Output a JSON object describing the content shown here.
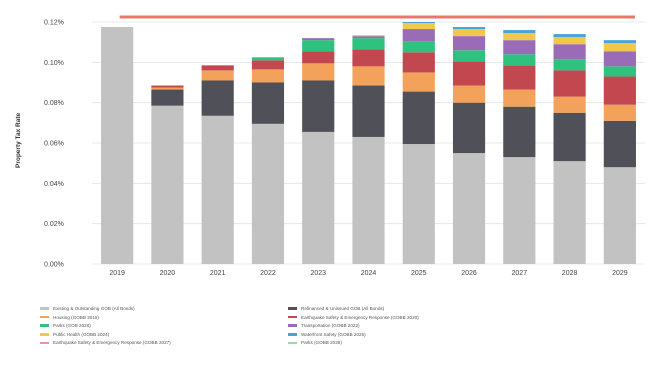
{
  "chart_data": {
    "type": "bar",
    "stacked": true,
    "ylabel": "Property Tax Rate",
    "ylim": [
      0,
      0.12
    ],
    "yticks": [
      "0.00%",
      "0.02%",
      "0.04%",
      "0.06%",
      "0.08%",
      "0.10%",
      "0.12%"
    ],
    "categories": [
      "2019",
      "2020",
      "2021",
      "2022",
      "2023",
      "2024",
      "2025",
      "2026",
      "2027",
      "2028",
      "2029"
    ],
    "reference_line": {
      "value": 0.1225,
      "color": "#e6776a"
    },
    "series": [
      {
        "name": "Existing & Outstanding GOB (All Bonds)",
        "color": "#c2c2c2",
        "values": [
          0.1175,
          0.0785,
          0.0735,
          0.0695,
          0.0655,
          0.063,
          0.0595,
          0.055,
          0.053,
          0.051,
          0.048
        ]
      },
      {
        "name": "Refinanced & Unissued GOB (All Bonds)",
        "color": "#505058",
        "values": [
          0,
          0.008,
          0.0175,
          0.0205,
          0.0255,
          0.0255,
          0.026,
          0.025,
          0.025,
          0.024,
          0.023
        ]
      },
      {
        "name": "Housing (GOBB 2015)",
        "color": "#f2a25a",
        "values": [
          0,
          0.001,
          0.005,
          0.0065,
          0.0085,
          0.0095,
          0.0095,
          0.0085,
          0.0085,
          0.008,
          0.008
        ]
      },
      {
        "name": "Earthquake Safety & Emergency Response (GOBB 2020)",
        "color": "#c2474f",
        "values": [
          0,
          0.001,
          0.0025,
          0.0045,
          0.006,
          0.0085,
          0.01,
          0.012,
          0.012,
          0.013,
          0.014
        ]
      },
      {
        "name": "Parks (GOB 2020)",
        "color": "#2ec27e",
        "values": [
          0,
          0,
          0,
          0.0015,
          0.0055,
          0.0055,
          0.0055,
          0.0055,
          0.0055,
          0.0055,
          0.005
        ]
      },
      {
        "name": "Transportation (GOBB 2022)",
        "color": "#9a6cb8",
        "values": [
          0,
          0,
          0,
          0,
          0.001,
          0.001,
          0.006,
          0.007,
          0.007,
          0.0075,
          0.0075
        ]
      },
      {
        "name": "Public Health (GOBB 2024)",
        "color": "#f2c84a",
        "values": [
          0,
          0,
          0,
          0,
          0,
          0.0005,
          0.003,
          0.0035,
          0.0035,
          0.0035,
          0.004
        ]
      },
      {
        "name": "Waterfront Safety (GOBB 2026)",
        "color": "#4aa3d6",
        "values": [
          0,
          0,
          0,
          0,
          0,
          0,
          0.0005,
          0.001,
          0.0015,
          0.0015,
          0.0015
        ]
      },
      {
        "name": "Earthquake Safety & Emergency Response (GOBB 2027)",
        "color": "#ea8fc0",
        "values": [
          0,
          0,
          0,
          0,
          0,
          0,
          0,
          0,
          0,
          0,
          0
        ]
      },
      {
        "name": "Parks (GOBB 2028)",
        "color": "#9fd8a8",
        "values": [
          0,
          0,
          0,
          0,
          0,
          0,
          0,
          0,
          0,
          0,
          0
        ]
      }
    ]
  }
}
